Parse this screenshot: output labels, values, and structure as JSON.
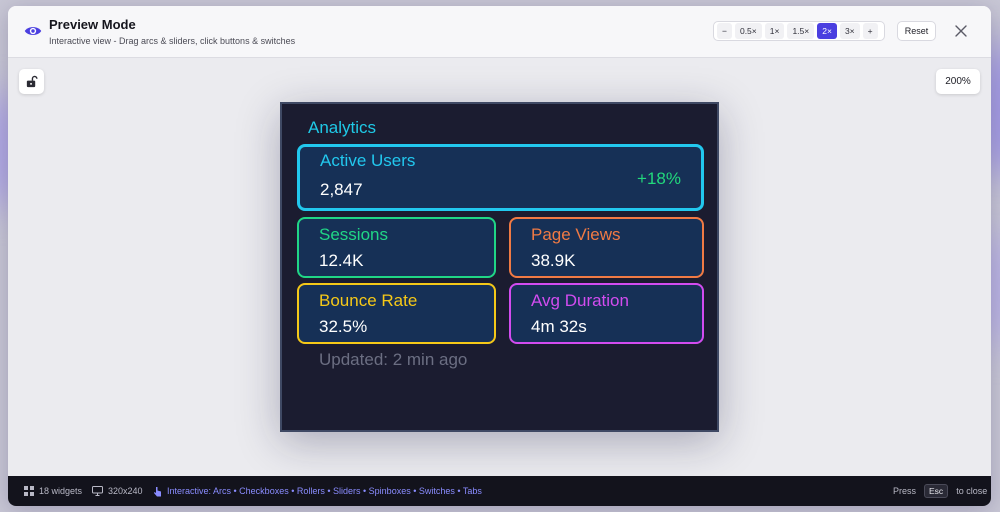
{
  "header": {
    "title": "Preview Mode",
    "subtitle": "Interactive view - Drag arcs & sliders, click buttons & switches",
    "zoom_buttons": [
      "−",
      "0.5×",
      "1×",
      "1.5×",
      "2×",
      "3×",
      "+"
    ],
    "active_zoom": "2×",
    "reset_label": "Reset"
  },
  "canvas": {
    "zoom_level": "200%"
  },
  "screen": {
    "title": "Analytics",
    "active_users": {
      "label": "Active Users",
      "value": "2,847",
      "delta": "+18%"
    },
    "sessions": {
      "label": "Sessions",
      "value": "12.4K"
    },
    "page_views": {
      "label": "Page Views",
      "value": "38.9K"
    },
    "bounce_rate": {
      "label": "Bounce Rate",
      "value": "32.5%"
    },
    "avg_duration": {
      "label": "Avg Duration",
      "value": "4m 32s"
    },
    "updated": "Updated: 2 min ago"
  },
  "footer": {
    "widgets": "18 widgets",
    "resolution": "320x240",
    "interactive": "Interactive: Arcs • Checkboxes • Rollers • Sliders • Spinboxes • Switches • Tabs",
    "close_hint_prefix": "Press",
    "close_key": "Esc",
    "close_hint_suffix": "to close"
  },
  "colors": {
    "accent": "#4b3fe0",
    "active_users": "#22c8ee",
    "sessions": "#20d686",
    "page_views": "#f07a44",
    "bounce_rate": "#f5c818",
    "avg_duration": "#d24cf0"
  }
}
